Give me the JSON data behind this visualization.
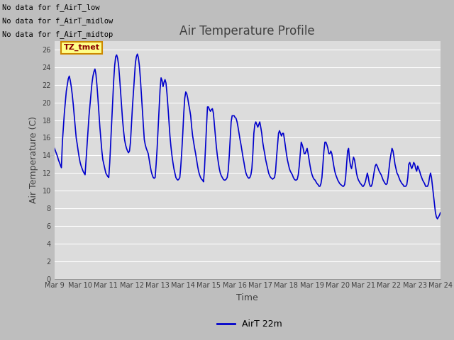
{
  "title": "Air Temperature Profile",
  "xlabel": "Time",
  "ylabel": "Air Temperature (C)",
  "legend_label": "AirT 22m",
  "line_color": "#0000cc",
  "fig_facecolor": "#c8c8c8",
  "plot_facecolor": "#e0e0e0",
  "ylim": [
    0,
    27
  ],
  "yticks": [
    0,
    2,
    4,
    6,
    8,
    10,
    12,
    14,
    16,
    18,
    20,
    22,
    24,
    26
  ],
  "xtick_labels": [
    "Mar 9",
    "Mar 10",
    "Mar 11",
    "Mar 12",
    "Mar 13",
    "Mar 14",
    "Mar 15",
    "Mar 16",
    "Mar 17",
    "Mar 18",
    "Mar 19",
    "Mar 20",
    "Mar 21",
    "Mar 22",
    "Mar 23",
    "Mar 24"
  ],
  "annotations": [
    "No data for f_AirT_low",
    "No data for f_AirT_midlow",
    "No data for f_AirT_midtop"
  ],
  "tz_label": "TZ_tmet",
  "temperature_data": [
    14.8,
    14.5,
    14.2,
    13.9,
    13.5,
    13.2,
    12.9,
    12.6,
    15.5,
    17.2,
    18.8,
    20.1,
    21.3,
    22.0,
    22.7,
    23.0,
    22.5,
    21.8,
    20.9,
    19.8,
    18.5,
    17.2,
    16.0,
    15.3,
    14.5,
    13.8,
    13.2,
    12.8,
    12.5,
    12.2,
    12.0,
    11.8,
    13.5,
    15.2,
    17.0,
    18.5,
    19.8,
    21.0,
    22.2,
    23.0,
    23.5,
    23.8,
    23.2,
    22.0,
    20.5,
    18.8,
    17.2,
    15.8,
    14.5,
    13.5,
    13.0,
    12.5,
    12.0,
    11.8,
    11.6,
    11.5,
    13.2,
    15.5,
    17.8,
    20.2,
    22.5,
    24.2,
    25.2,
    25.4,
    25.0,
    24.2,
    22.8,
    21.2,
    19.5,
    18.0,
    16.8,
    15.8,
    15.2,
    14.8,
    14.5,
    14.3,
    14.5,
    15.5,
    17.5,
    19.5,
    21.2,
    23.0,
    24.5,
    25.2,
    25.5,
    25.1,
    24.2,
    22.8,
    21.0,
    19.2,
    17.5,
    15.8,
    15.2,
    14.8,
    14.5,
    14.2,
    13.5,
    12.8,
    12.2,
    11.8,
    11.5,
    11.4,
    11.5,
    13.0,
    14.8,
    17.0,
    19.2,
    21.5,
    22.8,
    22.5,
    21.8,
    22.3,
    22.6,
    22.2,
    21.0,
    19.5,
    17.8,
    16.2,
    15.0,
    14.0,
    13.2,
    12.5,
    12.0,
    11.5,
    11.3,
    11.2,
    11.3,
    11.5,
    12.8,
    14.5,
    16.5,
    18.8,
    20.5,
    21.2,
    21.0,
    20.5,
    19.8,
    19.2,
    18.5,
    17.2,
    16.2,
    15.5,
    14.8,
    14.2,
    13.5,
    12.8,
    12.2,
    11.8,
    11.5,
    11.3,
    11.2,
    11.0,
    12.5,
    14.8,
    17.2,
    19.5,
    19.5,
    19.2,
    19.0,
    19.2,
    19.3,
    18.8,
    17.5,
    16.2,
    15.0,
    14.0,
    13.2,
    12.5,
    12.0,
    11.7,
    11.5,
    11.3,
    11.2,
    11.2,
    11.3,
    11.5,
    12.2,
    13.8,
    15.8,
    17.8,
    18.5,
    18.5,
    18.5,
    18.3,
    18.2,
    17.8,
    17.2,
    16.5,
    15.8,
    15.2,
    14.5,
    13.8,
    13.2,
    12.5,
    12.0,
    11.7,
    11.5,
    11.4,
    11.5,
    11.8,
    12.5,
    14.2,
    16.5,
    17.5,
    17.8,
    17.5,
    17.2,
    17.5,
    17.8,
    17.2,
    16.5,
    15.5,
    14.8,
    14.2,
    13.5,
    13.0,
    12.5,
    12.0,
    11.7,
    11.5,
    11.4,
    11.3,
    11.4,
    11.5,
    12.2,
    13.8,
    15.2,
    16.5,
    16.8,
    16.5,
    16.2,
    16.5,
    16.5,
    15.8,
    15.0,
    14.2,
    13.5,
    13.0,
    12.5,
    12.2,
    12.0,
    11.8,
    11.5,
    11.3,
    11.2,
    11.2,
    11.3,
    11.8,
    12.8,
    14.2,
    15.5,
    15.2,
    14.8,
    14.2,
    14.2,
    14.5,
    14.8,
    14.2,
    13.5,
    12.8,
    12.2,
    11.8,
    11.5,
    11.3,
    11.2,
    11.0,
    10.8,
    10.7,
    10.5,
    10.5,
    10.8,
    11.5,
    13.0,
    14.5,
    15.5,
    15.5,
    15.2,
    14.8,
    14.2,
    14.2,
    14.5,
    14.2,
    13.5,
    12.8,
    12.2,
    11.8,
    11.5,
    11.2,
    11.0,
    10.8,
    10.7,
    10.6,
    10.5,
    10.5,
    10.7,
    11.5,
    13.0,
    14.5,
    14.8,
    13.5,
    12.8,
    12.5,
    13.2,
    13.8,
    13.5,
    12.8,
    12.0,
    11.5,
    11.2,
    11.0,
    10.8,
    10.7,
    10.5,
    10.5,
    10.7,
    11.0,
    11.5,
    12.0,
    11.5,
    10.8,
    10.5,
    10.5,
    10.8,
    11.5,
    12.2,
    12.8,
    13.0,
    12.8,
    12.5,
    12.2,
    12.0,
    11.8,
    11.5,
    11.2,
    11.0,
    10.8,
    10.7,
    10.8,
    11.5,
    12.5,
    13.5,
    14.2,
    14.8,
    14.5,
    13.8,
    13.0,
    12.5,
    12.0,
    11.8,
    11.5,
    11.2,
    11.0,
    10.8,
    10.7,
    10.5,
    10.5,
    10.5,
    10.7,
    11.5,
    13.0,
    13.2,
    12.8,
    12.5,
    12.8,
    13.2,
    13.0,
    12.5,
    12.2,
    12.8,
    12.5,
    12.2,
    11.8,
    11.5,
    11.2,
    11.0,
    10.8,
    10.5,
    10.5,
    10.5,
    10.8,
    11.5,
    12.0,
    11.5,
    10.5,
    9.5,
    8.5,
    7.5,
    7.0,
    6.8,
    7.0,
    7.2,
    7.5
  ]
}
